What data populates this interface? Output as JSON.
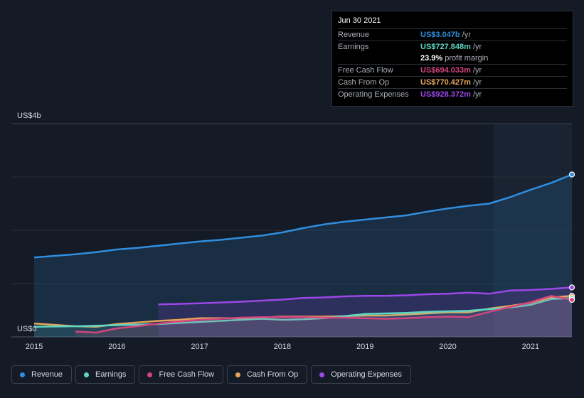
{
  "chart_data": {
    "type": "area",
    "y_axis_top_label": "US$4b",
    "y_axis_bottom_label": "US$0",
    "ylim": [
      0,
      4
    ],
    "x_ticks": [
      "2015",
      "2016",
      "2017",
      "2018",
      "2019",
      "2020",
      "2021"
    ],
    "xlim": [
      2015.0,
      2021.5
    ],
    "grid": true,
    "highlight_start": 2020.55,
    "series": [
      {
        "name": "Revenue",
        "color": "#2f8ee0",
        "fill": true,
        "marker": true,
        "x": [
          2015.0,
          2015.5,
          2015.75,
          2016.0,
          2016.25,
          2016.5,
          2016.75,
          2017.0,
          2017.25,
          2017.5,
          2017.75,
          2018.0,
          2018.25,
          2018.5,
          2018.75,
          2019.0,
          2019.25,
          2019.5,
          2019.75,
          2020.0,
          2020.25,
          2020.5,
          2020.75,
          2021.0,
          2021.25,
          2021.5
        ],
        "values": [
          1.49,
          1.55,
          1.59,
          1.64,
          1.67,
          1.71,
          1.75,
          1.79,
          1.82,
          1.86,
          1.9,
          1.96,
          2.04,
          2.11,
          2.16,
          2.2,
          2.24,
          2.28,
          2.35,
          2.41,
          2.46,
          2.5,
          2.62,
          2.76,
          2.89,
          3.047
        ]
      },
      {
        "name": "Operating Expenses",
        "color": "#9c47e8",
        "fill": true,
        "marker": true,
        "x": [
          2016.5,
          2017.0,
          2017.5,
          2018.0,
          2018.25,
          2018.5,
          2018.75,
          2019.0,
          2019.25,
          2019.5,
          2019.75,
          2020.0,
          2020.25,
          2020.5,
          2020.75,
          2021.0,
          2021.25,
          2021.5
        ],
        "values": [
          0.61,
          0.63,
          0.66,
          0.7,
          0.73,
          0.74,
          0.76,
          0.77,
          0.77,
          0.78,
          0.8,
          0.81,
          0.83,
          0.81,
          0.87,
          0.88,
          0.9,
          0.928
        ]
      },
      {
        "name": "Cash From Op",
        "color": "#e4a65a",
        "fill": false,
        "marker": true,
        "x": [
          2015.0,
          2015.5,
          2015.75,
          2016.0,
          2016.25,
          2016.5,
          2016.75,
          2017.0,
          2017.5,
          2018.0,
          2018.25,
          2018.5,
          2018.75,
          2019.0,
          2019.25,
          2019.5,
          2019.75,
          2020.0,
          2020.25,
          2020.5,
          2020.75,
          2021.0,
          2021.25,
          2021.5
        ],
        "values": [
          0.25,
          0.2,
          0.19,
          0.24,
          0.27,
          0.3,
          0.32,
          0.35,
          0.35,
          0.38,
          0.38,
          0.38,
          0.39,
          0.4,
          0.4,
          0.42,
          0.44,
          0.46,
          0.46,
          0.53,
          0.58,
          0.64,
          0.74,
          0.77
        ]
      },
      {
        "name": "Earnings",
        "color": "#5fd6c4",
        "fill": true,
        "marker": true,
        "x": [
          2015.0,
          2015.5,
          2015.75,
          2016.0,
          2016.25,
          2016.5,
          2016.75,
          2017.0,
          2017.25,
          2017.5,
          2017.75,
          2018.0,
          2018.25,
          2018.5,
          2018.75,
          2019.0,
          2019.25,
          2019.5,
          2019.75,
          2020.0,
          2020.25,
          2020.5,
          2020.75,
          2021.0,
          2021.25,
          2021.5
        ],
        "values": [
          0.19,
          0.2,
          0.21,
          0.22,
          0.23,
          0.24,
          0.26,
          0.28,
          0.3,
          0.32,
          0.34,
          0.32,
          0.33,
          0.35,
          0.39,
          0.43,
          0.44,
          0.45,
          0.47,
          0.48,
          0.49,
          0.52,
          0.55,
          0.6,
          0.71,
          0.728
        ]
      },
      {
        "name": "Free Cash Flow",
        "color": "#d4457f",
        "fill": true,
        "marker": true,
        "x": [
          2015.5,
          2015.75,
          2016.0,
          2016.25,
          2016.5,
          2016.75,
          2017.0,
          2017.25,
          2017.5,
          2017.75,
          2018.0,
          2018.25,
          2018.5,
          2018.75,
          2019.0,
          2019.25,
          2019.5,
          2019.75,
          2020.0,
          2020.25,
          2020.5,
          2020.75,
          2021.0,
          2021.25,
          2021.5
        ],
        "values": [
          0.1,
          0.08,
          0.16,
          0.2,
          0.25,
          0.29,
          0.32,
          0.34,
          0.36,
          0.37,
          0.37,
          0.37,
          0.36,
          0.36,
          0.35,
          0.34,
          0.35,
          0.37,
          0.38,
          0.37,
          0.47,
          0.56,
          0.65,
          0.77,
          0.694
        ]
      }
    ]
  },
  "tooltip": {
    "date": "Jun 30 2021",
    "rows": [
      {
        "label": "Revenue",
        "value": "US$3.047b",
        "unit": "/yr",
        "color": "#2f8ee0"
      },
      {
        "label": "Earnings",
        "value": "US$727.848m",
        "unit": "/yr",
        "color": "#5fd6c4"
      },
      {
        "label": "",
        "value": "23.9%",
        "unit": "profit margin",
        "color": "#ffffff"
      },
      {
        "label": "Free Cash Flow",
        "value": "US$694.033m",
        "unit": "/yr",
        "color": "#d4457f"
      },
      {
        "label": "Cash From Op",
        "value": "US$770.427m",
        "unit": "/yr",
        "color": "#e4a65a"
      },
      {
        "label": "Operating Expenses",
        "value": "US$928.372m",
        "unit": "/yr",
        "color": "#9c47e8"
      }
    ]
  },
  "legend": [
    {
      "label": "Revenue",
      "color": "#2f8ee0"
    },
    {
      "label": "Earnings",
      "color": "#5fd6c4"
    },
    {
      "label": "Free Cash Flow",
      "color": "#d4457f"
    },
    {
      "label": "Cash From Op",
      "color": "#e4a65a"
    },
    {
      "label": "Operating Expenses",
      "color": "#9c47e8"
    }
  ]
}
